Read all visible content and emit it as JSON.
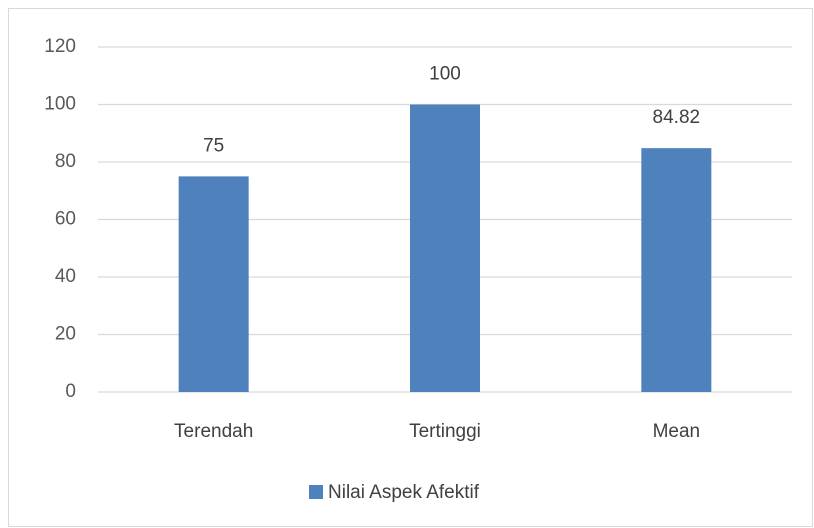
{
  "chart_data": {
    "type": "bar",
    "categories": [
      "Terendah",
      "Tertinggi",
      "Mean"
    ],
    "series": [
      {
        "name": "Nilai Aspek Afektif",
        "color": "#4f81bd",
        "values": [
          75,
          100,
          84.82
        ]
      }
    ],
    "ylim": [
      0,
      120
    ],
    "yticks": [
      0,
      20,
      40,
      60,
      80,
      100,
      120
    ],
    "grid": true,
    "legend": "bottom"
  }
}
